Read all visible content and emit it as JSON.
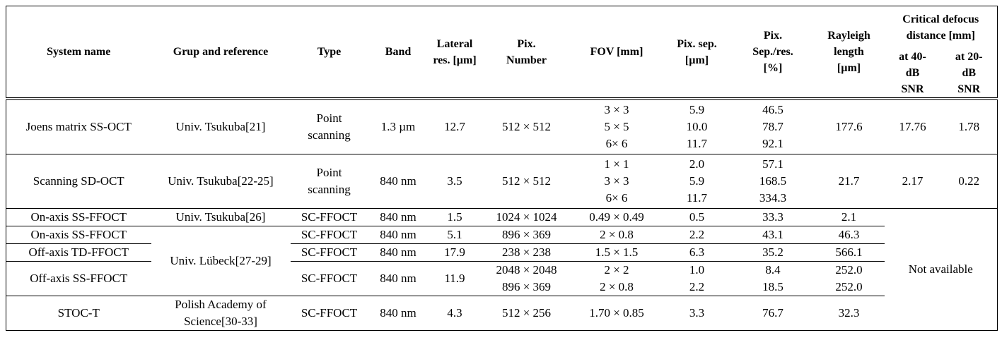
{
  "table": {
    "header": [
      [
        "System name"
      ],
      [
        "Grup and reference"
      ],
      [
        "Type"
      ],
      [
        "Band"
      ],
      [
        "Lateral",
        "res. [µm]"
      ],
      [
        "Pix.",
        "Number"
      ],
      [
        "FOV [mm]"
      ],
      [
        "Pix. sep.",
        "[µm]"
      ],
      [
        "Pix.",
        "Sep./res.",
        "[%]"
      ],
      [
        "Rayleigh",
        "length",
        "[µm]"
      ]
    ],
    "group_header": [
      "Critical defocus",
      "distance [mm]"
    ],
    "sub_header": [
      [
        "at 40-",
        "dB",
        "SNR"
      ],
      [
        "at 20-",
        "dB",
        "SNR"
      ]
    ],
    "rows": [
      [
        [
          "Joens matrix SS-OCT"
        ],
        [
          "Univ. Tsukuba[21]"
        ],
        [
          "Point",
          "scanning"
        ],
        [
          "1.3 µm"
        ],
        [
          "12.7"
        ],
        [
          "512 × 512"
        ],
        [
          "3 × 3",
          "5 × 5",
          "6× 6"
        ],
        [
          "5.9",
          "10.0",
          "11.7"
        ],
        [
          "46.5",
          "78.7",
          "92.1"
        ],
        [
          "177.6"
        ],
        [
          "17.76"
        ],
        [
          "1.78"
        ]
      ],
      [
        [
          "Scanning SD-OCT"
        ],
        [
          "Univ. Tsukuba[22-25]"
        ],
        [
          "Point",
          "scanning"
        ],
        [
          "840 nm"
        ],
        [
          "3.5"
        ],
        [
          "512 × 512"
        ],
        [
          "1 × 1",
          "3 × 3",
          "6× 6"
        ],
        [
          "2.0",
          "5.9",
          "11.7"
        ],
        [
          "57.1",
          "168.5",
          "334.3"
        ],
        [
          "21.7"
        ],
        [
          "2.17"
        ],
        [
          "0.22"
        ]
      ],
      [
        [
          "On-axis SS-FFOCT"
        ],
        [
          "Univ. Tsukuba[26]"
        ],
        [
          "SC-FFOCT"
        ],
        [
          "840 nm"
        ],
        [
          "1.5"
        ],
        [
          "1024 × 1024"
        ],
        [
          "0.49 × 0.49"
        ],
        [
          "0.5"
        ],
        [
          "33.3"
        ],
        [
          "2.1"
        ],
        [
          "Not available"
        ]
      ],
      [
        [
          "On-axis SS-FFOCT"
        ],
        [
          "Univ. Lübeck[27-29]"
        ],
        [
          "SC-FFOCT"
        ],
        [
          "840 nm"
        ],
        [
          "5.1"
        ],
        [
          "896 × 369"
        ],
        [
          "2 × 0.8"
        ],
        [
          "2.2"
        ],
        [
          "43.1"
        ],
        [
          "46.3"
        ]
      ],
      [
        [
          "Off-axis TD-FFOCT"
        ],
        [
          "SC-FFOCT"
        ],
        [
          "840 nm"
        ],
        [
          "17.9"
        ],
        [
          "238 × 238"
        ],
        [
          "1.5 × 1.5"
        ],
        [
          "6.3"
        ],
        [
          "35.2"
        ],
        [
          "566.1"
        ]
      ],
      [
        [
          "Off-axis SS-FFOCT"
        ],
        [
          "SC-FFOCT"
        ],
        [
          "840 nm"
        ],
        [
          "11.9"
        ],
        [
          "2048 × 2048",
          "896 × 369"
        ],
        [
          "2 × 2",
          "2 × 0.8"
        ],
        [
          "1.0",
          "2.2"
        ],
        [
          "8.4",
          "18.5"
        ],
        [
          "252.0",
          "252.0"
        ]
      ],
      [
        [
          "STOC-T"
        ],
        [
          "Polish Academy of",
          "Science[30-33]"
        ],
        [
          "SC-FFOCT"
        ],
        [
          "840 nm"
        ],
        [
          "4.3"
        ],
        [
          "512 × 256"
        ],
        [
          "1.70 × 0.85"
        ],
        [
          "3.3"
        ],
        [
          "76.7"
        ],
        [
          "32.3"
        ]
      ]
    ]
  }
}
